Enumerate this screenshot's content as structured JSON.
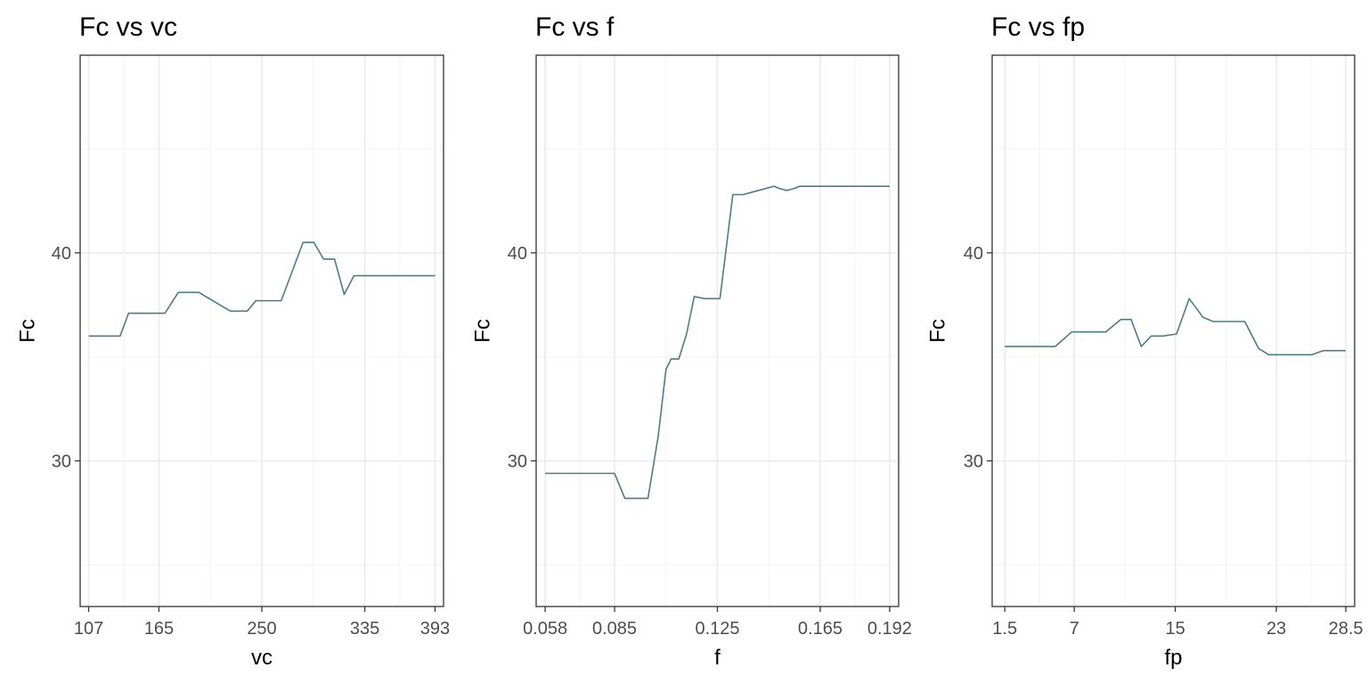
{
  "colors": {
    "line": "#4a7d86"
  },
  "chart_data": [
    {
      "type": "line",
      "title": "Fc vs vc",
      "xlabel": "vc",
      "ylabel": "Fc",
      "xlim": [
        100,
        400
      ],
      "ylim": [
        23,
        49.5
      ],
      "xticks": [
        107,
        165,
        250,
        335,
        393
      ],
      "yticks": [
        30,
        40
      ],
      "grid": true,
      "x": [
        107,
        133,
        140,
        165,
        170,
        181,
        198,
        224,
        238,
        245,
        262,
        266,
        284,
        286,
        293,
        301,
        309,
        310,
        318,
        326,
        327,
        335,
        393
      ],
      "y": [
        36.0,
        36.0,
        37.1,
        37.1,
        37.1,
        38.1,
        38.1,
        37.2,
        37.2,
        37.7,
        37.7,
        37.7,
        40.5,
        40.5,
        40.5,
        39.7,
        39.7,
        39.7,
        38.0,
        38.9,
        38.9,
        38.9,
        38.9
      ]
    },
    {
      "type": "line",
      "title": "Fc vs f",
      "xlabel": "f",
      "ylabel": "Fc",
      "xlim": [
        0.0545,
        0.1955
      ],
      "ylim": [
        23,
        49.5
      ],
      "xticks": [
        0.058,
        0.085,
        0.125,
        0.165,
        0.192
      ],
      "yticks": [
        30,
        40
      ],
      "grid": true,
      "x": [
        0.058,
        0.085,
        0.089,
        0.095,
        0.098,
        0.102,
        0.105,
        0.107,
        0.11,
        0.113,
        0.116,
        0.12,
        0.126,
        0.131,
        0.135,
        0.138,
        0.141,
        0.144,
        0.147,
        0.149,
        0.152,
        0.155,
        0.157,
        0.16,
        0.165,
        0.192
      ],
      "y": [
        29.4,
        29.4,
        28.2,
        28.2,
        28.2,
        31.2,
        34.4,
        34.9,
        34.9,
        36.1,
        37.9,
        37.8,
        37.8,
        42.8,
        42.8,
        42.9,
        43.0,
        43.1,
        43.2,
        43.1,
        43.0,
        43.1,
        43.2,
        43.2,
        43.2,
        43.2
      ]
    },
    {
      "type": "line",
      "title": "Fc vs fp",
      "xlabel": "fp",
      "ylabel": "Fc",
      "xlim": [
        0.5,
        29.2
      ],
      "ylim": [
        23,
        49.5
      ],
      "xticks": [
        1.5,
        7,
        15,
        23,
        28.5
      ],
      "yticks": [
        30,
        40
      ],
      "grid": true,
      "x": [
        1.5,
        5.5,
        6.8,
        9.5,
        10.7,
        11.5,
        12.3,
        13.1,
        14.0,
        15.1,
        16.1,
        17.2,
        18.0,
        19.0,
        20.5,
        21.6,
        22.4,
        24.0,
        25.8,
        26.7,
        28.5
      ],
      "y": [
        35.5,
        35.5,
        36.2,
        36.2,
        36.8,
        36.8,
        35.5,
        36.0,
        36.0,
        36.1,
        37.8,
        36.9,
        36.7,
        36.7,
        36.7,
        35.4,
        35.1,
        35.1,
        35.1,
        35.3,
        35.3
      ]
    }
  ]
}
